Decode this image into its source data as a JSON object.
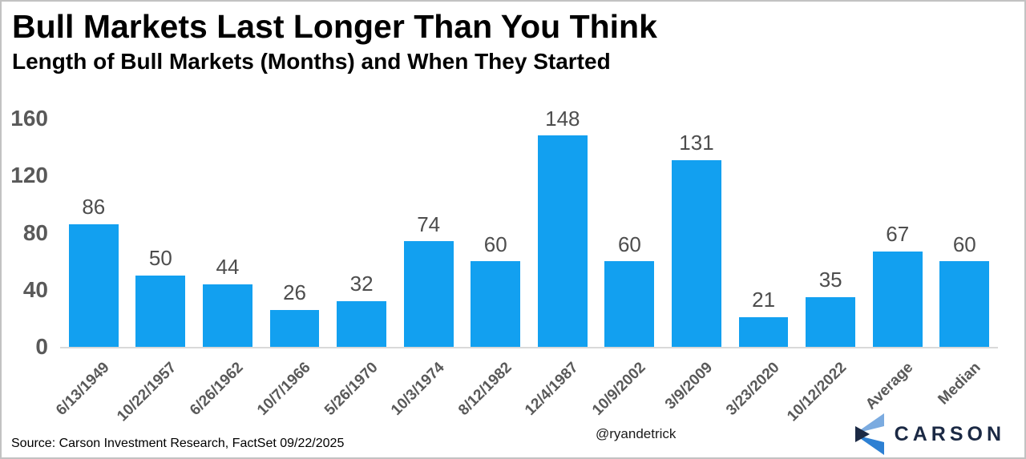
{
  "chart_data": {
    "type": "bar",
    "title": "Bull Markets Last Longer Than You Think",
    "subtitle": "Length of Bull Markets (Months) and When They Started",
    "categories": [
      "6/13/1949",
      "10/22/1957",
      "6/26/1962",
      "10/7/1966",
      "5/26/1970",
      "10/3/1974",
      "8/12/1982",
      "12/4/1987",
      "10/9/2002",
      "3/9/2009",
      "3/23/2020",
      "10/12/2022",
      "Average",
      "Median"
    ],
    "values": [
      86,
      50,
      44,
      26,
      32,
      74,
      60,
      148,
      60,
      131,
      21,
      35,
      67,
      60
    ],
    "xlabel": "",
    "ylabel": "",
    "ylim": [
      0,
      160
    ],
    "yticks": [
      0,
      40,
      80,
      120,
      160
    ],
    "grid": false,
    "legend": false,
    "bar_color": "#12A0F0",
    "value_label_color": "#4d4d4d",
    "axis_label_color": "#595959",
    "baseline_color": "#d9d9d9"
  },
  "footer": {
    "source": "Source: Carson Investment Research, FactSet 09/22/2025",
    "handle": "@ryandetrick",
    "logo_text": "CARSON",
    "logo_colors": {
      "light": "#7BABE0",
      "mid": "#2D80D3",
      "dark": "#1B2944"
    }
  }
}
